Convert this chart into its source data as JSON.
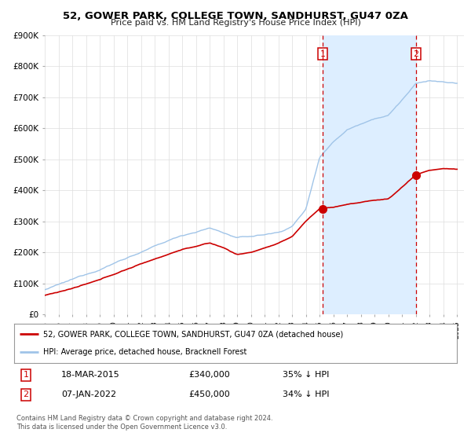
{
  "title": "52, GOWER PARK, COLLEGE TOWN, SANDHURST, GU47 0ZA",
  "subtitle": "Price paid vs. HM Land Registry's House Price Index (HPI)",
  "ylim": [
    0,
    900000
  ],
  "yticks": [
    0,
    100000,
    200000,
    300000,
    400000,
    500000,
    600000,
    700000,
    800000,
    900000
  ],
  "ytick_labels": [
    "£0",
    "£100K",
    "£200K",
    "£300K",
    "£400K",
    "£500K",
    "£600K",
    "£700K",
    "£800K",
    "£900K"
  ],
  "hpi_color": "#a0c4e8",
  "hpi_shade_color": "#ddeeff",
  "price_color": "#cc0000",
  "vline_color": "#cc0000",
  "sale1_date": 2015.21,
  "sale1_price": 340000,
  "sale1_label": "1",
  "sale2_date": 2022.02,
  "sale2_price": 450000,
  "sale2_label": "2",
  "legend_entry1": "52, GOWER PARK, COLLEGE TOWN, SANDHURST, GU47 0ZA (detached house)",
  "legend_entry2": "HPI: Average price, detached house, Bracknell Forest",
  "table_row1_num": "1",
  "table_row1_date": "18-MAR-2015",
  "table_row1_price": "£340,000",
  "table_row1_hpi": "35% ↓ HPI",
  "table_row2_num": "2",
  "table_row2_date": "07-JAN-2022",
  "table_row2_price": "£450,000",
  "table_row2_hpi": "34% ↓ HPI",
  "footer": "Contains HM Land Registry data © Crown copyright and database right 2024.\nThis data is licensed under the Open Government Licence v3.0.",
  "background_color": "#ffffff",
  "grid_color": "#dddddd"
}
